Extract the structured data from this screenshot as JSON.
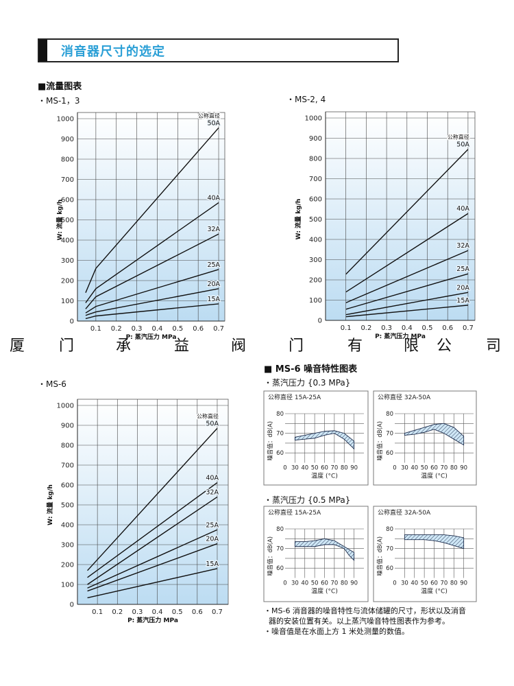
{
  "header": {
    "title": "消音器尺寸的选定"
  },
  "flow_section": {
    "heading": "■流量图表"
  },
  "noise_section": {
    "heading": "■ MS-6 噪音特性图表",
    "pressure_03": "・蒸汽压力 {0.3 MPa}",
    "pressure_05": "・蒸汽压力 {0.5 MPa}",
    "notes": [
      "・MS-6 消音器的噪音特性与流体储罐的尺寸，形状以及消音",
      "  器的安装位置有关。以上蒸汽噪音特性图表作为参考。",
      "・噪音值是在水面上方 1 米处测量的数值。"
    ]
  },
  "company_banner": [
    "厦",
    "门",
    "承",
    "益",
    "阀",
    "门",
    "有",
    "限",
    "公",
    "司"
  ],
  "colors": {
    "title": "#2a9fd6",
    "plot_bg_top": "#ffffff",
    "plot_bg_bottom": "#bcdcf2",
    "band_fill": "#cfe7f6",
    "band_hatch": "#1a2a4a",
    "line": "#111111"
  },
  "chart_data": [
    {
      "type": "line",
      "label": "・MS-1，3",
      "xlabel": "P: 蒸汽压力 MPa",
      "ylabel": "W: 流量 kg/h",
      "legend_title": "公称直径",
      "xticks": [
        0.1,
        0.2,
        0.3,
        0.4,
        0.5,
        0.6,
        0.7
      ],
      "yticks": [
        0,
        100,
        200,
        300,
        400,
        500,
        600,
        700,
        800,
        900,
        1000
      ],
      "xlim": [
        0.01,
        0.73
      ],
      "ylim": [
        0,
        1000
      ],
      "grid": true,
      "series": [
        {
          "name": "50A",
          "x": [
            0.05,
            0.1,
            0.7
          ],
          "y": [
            140,
            260,
            955
          ]
        },
        {
          "name": "40A",
          "x": [
            0.05,
            0.1,
            0.7
          ],
          "y": [
            90,
            160,
            585
          ]
        },
        {
          "name": "32A",
          "x": [
            0.05,
            0.1,
            0.7
          ],
          "y": [
            60,
            120,
            430
          ]
        },
        {
          "name": "25A",
          "x": [
            0.05,
            0.1,
            0.7
          ],
          "y": [
            40,
            72,
            255
          ]
        },
        {
          "name": "20A",
          "x": [
            0.05,
            0.1,
            0.7
          ],
          "y": [
            28,
            45,
            160
          ]
        },
        {
          "name": "15A",
          "x": [
            0.05,
            0.1,
            0.7
          ],
          "y": [
            12,
            25,
            85
          ]
        }
      ]
    },
    {
      "type": "line",
      "label": "・MS-2, 4",
      "xlabel": "P: 蒸汽压力 MPa",
      "ylabel": "W: 流量 kg/h",
      "legend_title": "公称直径",
      "xticks": [
        0.1,
        0.2,
        0.3,
        0.4,
        0.5,
        0.6,
        0.7
      ],
      "yticks": [
        0,
        100,
        200,
        300,
        400,
        500,
        600,
        700,
        800,
        900,
        1000
      ],
      "xlim": [
        0.0,
        0.734
      ],
      "ylim": [
        0,
        1000
      ],
      "grid": true,
      "series": [
        {
          "name": "50A",
          "x": [
            0.1,
            0.7
          ],
          "y": [
            228,
            845
          ]
        },
        {
          "name": "40A",
          "x": [
            0.1,
            0.7
          ],
          "y": [
            140,
            528
          ]
        },
        {
          "name": "32A",
          "x": [
            0.1,
            0.7
          ],
          "y": [
            87,
            345
          ]
        },
        {
          "name": "25A",
          "x": [
            0.1,
            0.7
          ],
          "y": [
            55,
            230
          ]
        },
        {
          "name": "20A",
          "x": [
            0.1,
            0.7
          ],
          "y": [
            28,
            138
          ]
        },
        {
          "name": "15A",
          "x": [
            0.1,
            0.7
          ],
          "y": [
            18,
            75
          ]
        }
      ]
    },
    {
      "type": "line",
      "label": "・MS-6",
      "xlabel": "P: 蒸汽压力 MPa",
      "ylabel": "W: 流量 kg/h",
      "legend_title": "公称直径",
      "xticks": [
        0.1,
        0.2,
        0.3,
        0.4,
        0.5,
        0.6,
        0.7
      ],
      "yticks": [
        0,
        100,
        200,
        300,
        400,
        500,
        600,
        700,
        800,
        900,
        1000
      ],
      "xlim": [
        0.0,
        0.755
      ],
      "ylim": [
        0,
        1000
      ],
      "grid": true,
      "series": [
        {
          "name": "50A",
          "x": [
            0.05,
            0.7
          ],
          "y": [
            170,
            885
          ]
        },
        {
          "name": "40A",
          "x": [
            0.05,
            0.7
          ],
          "y": [
            135,
            612
          ]
        },
        {
          "name": "32A",
          "x": [
            0.05,
            0.7
          ],
          "y": [
            100,
            540
          ]
        },
        {
          "name": "25A",
          "x": [
            0.05,
            0.7
          ],
          "y": [
            82,
            375
          ]
        },
        {
          "name": "20A",
          "x": [
            0.05,
            0.7
          ],
          "y": [
            67,
            305
          ]
        },
        {
          "name": "15A",
          "x": [
            0.05,
            0.7
          ],
          "y": [
            33,
            180
          ]
        }
      ]
    },
    {
      "type": "area",
      "pressure": "0.3 MPa",
      "title": "公称直径 15A-25A",
      "xlabel": "温度 (°C)",
      "ylabel": "噪音值：dB(A)",
      "origin_label": "0",
      "xticks": [
        30,
        40,
        50,
        60,
        70,
        80,
        90
      ],
      "yticks": [
        60,
        70,
        80
      ],
      "ylim": [
        55,
        80
      ],
      "grid": true,
      "band": {
        "x": [
          30,
          40,
          50,
          60,
          70,
          80,
          85,
          90
        ],
        "upper": [
          68,
          69,
          70,
          71,
          71.3,
          70,
          68,
          66
        ],
        "lower": [
          66.5,
          67,
          67.5,
          69,
          70,
          67,
          64.5,
          62
        ]
      }
    },
    {
      "type": "area",
      "pressure": "0.3 MPa",
      "title": "公称直径 32A-50A",
      "xlabel": "温度 (°C)",
      "ylabel": "噪音值：dB(A)",
      "origin_label": "0",
      "xticks": [
        30,
        40,
        50,
        60,
        70,
        80,
        90
      ],
      "yticks": [
        60,
        70,
        80
      ],
      "ylim": [
        55,
        80
      ],
      "grid": true,
      "band": {
        "x": [
          30,
          40,
          50,
          60,
          70,
          80,
          90
        ],
        "upper": [
          70,
          71.5,
          73,
          74.5,
          75,
          73,
          68.5
        ],
        "lower": [
          69,
          69.5,
          70.5,
          72,
          70,
          67,
          64
        ]
      }
    },
    {
      "type": "area",
      "pressure": "0.5 MPa",
      "title": "公称直径 15A-25A",
      "xlabel": "温度 (°C)",
      "ylabel": "噪音值：dB(A)",
      "origin_label": "0",
      "xticks": [
        30,
        40,
        50,
        60,
        70,
        80,
        90
      ],
      "yticks": [
        60,
        70,
        80
      ],
      "ylim": [
        55,
        80
      ],
      "grid": true,
      "band": {
        "x": [
          30,
          40,
          50,
          60,
          70,
          80,
          85,
          90
        ],
        "upper": [
          73.5,
          73.5,
          74,
          75,
          74,
          71,
          69.5,
          68
        ],
        "lower": [
          71,
          71,
          71,
          72,
          72,
          70,
          66.5,
          64
        ]
      }
    },
    {
      "type": "area",
      "pressure": "0.5 MPa",
      "title": "公称直径 32A-50A",
      "xlabel": "温度 (°C)",
      "ylabel": "噪音值：dB(A)",
      "origin_label": "0",
      "xticks": [
        30,
        40,
        50,
        60,
        70,
        80,
        90
      ],
      "yticks": [
        60,
        70,
        80
      ],
      "ylim": [
        55,
        80
      ],
      "grid": true,
      "band": {
        "x": [
          30,
          40,
          50,
          60,
          70,
          80,
          90
        ],
        "upper": [
          77,
          77,
          77,
          77,
          77,
          76.5,
          75.5
        ],
        "lower": [
          74.5,
          74.5,
          74.5,
          74,
          73,
          71.5,
          70
        ]
      }
    }
  ]
}
